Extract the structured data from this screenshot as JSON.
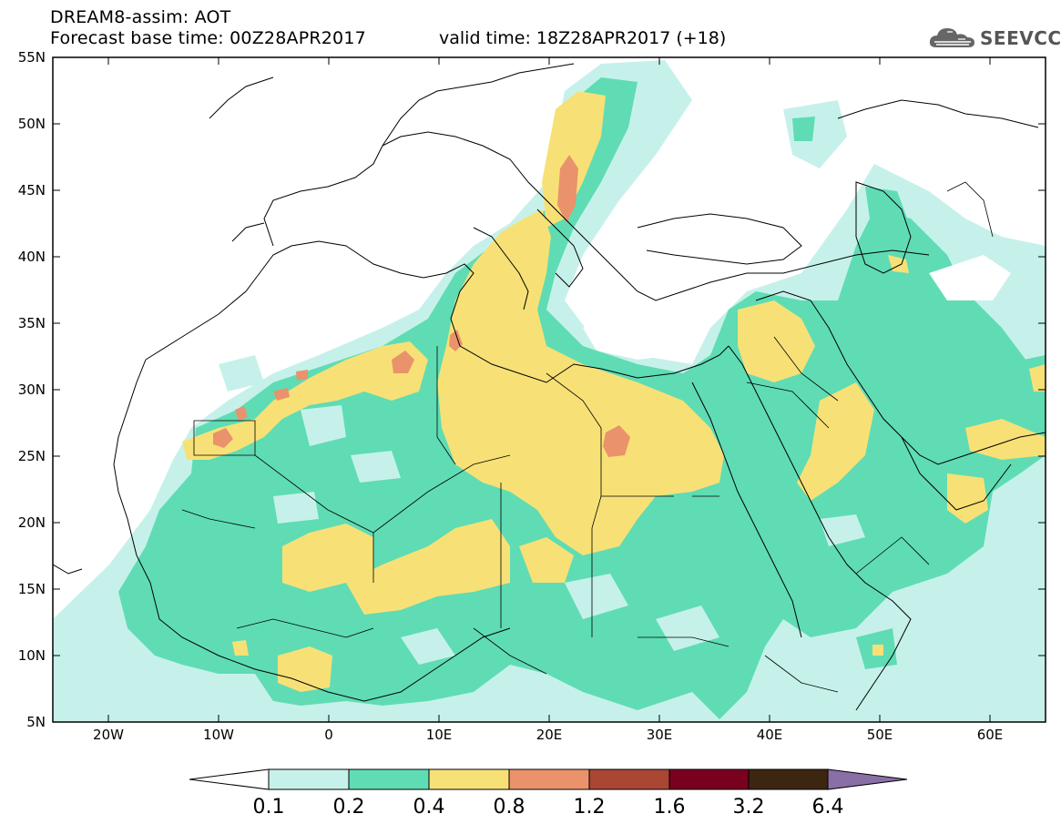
{
  "header": {
    "title": "DREAM8-assim: AOT",
    "base_time": "Forecast base time: 00Z28APR2017",
    "valid_time": "valid time: 18Z28APR2017 (+18)",
    "logo_text": "SEEVCCC"
  },
  "map": {
    "lon_range": [
      -25,
      65
    ],
    "lat_range": [
      5,
      55
    ],
    "lat_ticks": [
      "55N",
      "50N",
      "45N",
      "40N",
      "35N",
      "30N",
      "25N",
      "20N",
      "15N",
      "10N",
      "5N"
    ],
    "lon_ticks": [
      "20W",
      "10W",
      "0",
      "10E",
      "20E",
      "30E",
      "40E",
      "50E",
      "60E"
    ],
    "projection": "cylindrical",
    "background_color": "#ffffff"
  },
  "legend": {
    "labels": [
      "0.1",
      "0.2",
      "0.4",
      "0.8",
      "1.2",
      "1.6",
      "3.2",
      "6.4"
    ],
    "colors": [
      "#ffffff",
      "#c6f1eb",
      "#5fdcb4",
      "#f7e176",
      "#ea926b",
      "#a94634",
      "#7a0020",
      "#3d2611",
      "#8a6ea6"
    ]
  }
}
